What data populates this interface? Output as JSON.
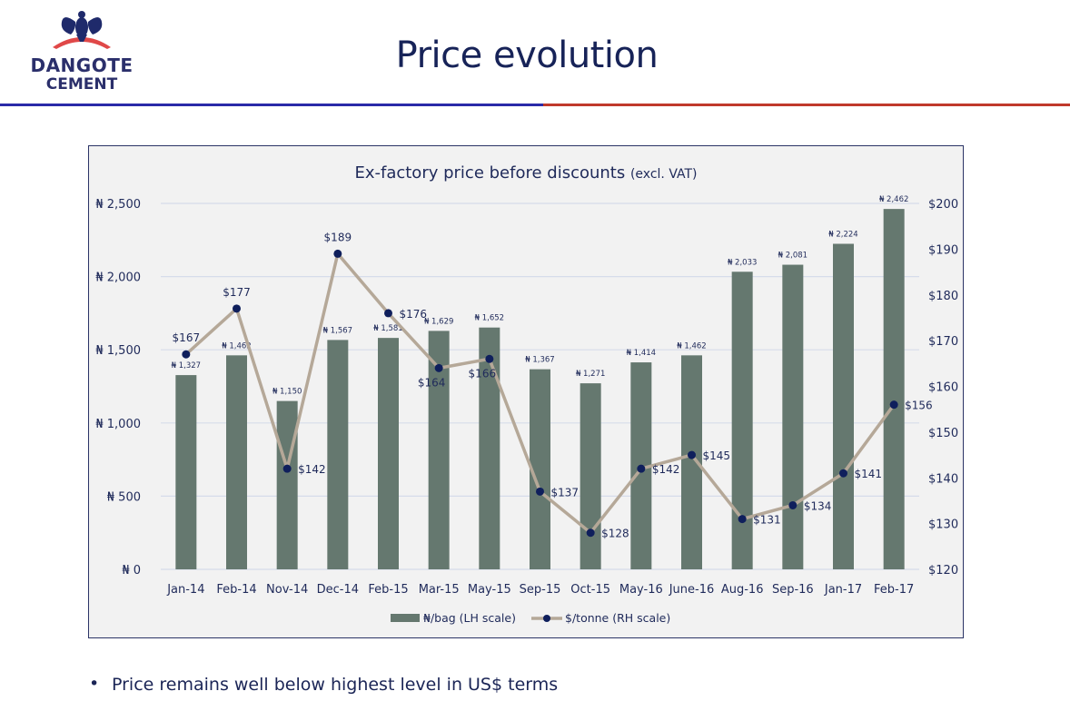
{
  "header": {
    "logo_line1": "DANGOTE",
    "logo_line2": "CEMENT",
    "title": "Price evolution",
    "brand_blue": "#2a2aa8",
    "brand_red": "#c0392b"
  },
  "chart_data": {
    "type": "bar+line",
    "title": "Ex-factory price before discounts",
    "title_suffix": "(excl. VAT)",
    "categories": [
      "Jan-14",
      "Feb-14",
      "Nov-14",
      "Dec-14",
      "Feb-15",
      "Mar-15",
      "May-15",
      "Sep-15",
      "Oct-15",
      "May-16",
      "June-16",
      "Aug-16",
      "Sep-16",
      "Jan-17",
      "Feb-17"
    ],
    "series": [
      {
        "name": "₦/bag (LH scale)",
        "type": "bar",
        "axis": "left",
        "color": "#65786f",
        "values": [
          1327,
          1462,
          1150,
          1567,
          1581,
          1629,
          1652,
          1367,
          1271,
          1414,
          1462,
          2033,
          2081,
          2224,
          2462
        ],
        "labels": [
          "₦ 1,327",
          "₦ 1,462",
          "₦ 1,150",
          "₦ 1,567",
          "₦ 1,581",
          "₦ 1,629",
          "₦ 1,652",
          "₦ 1,367",
          "₦ 1,271",
          "₦ 1,414",
          "₦ 1,462",
          "₦ 2,033",
          "₦ 2,081",
          "₦ 2,224",
          "₦ 2,462"
        ]
      },
      {
        "name": "$/tonne (RH scale)",
        "type": "line",
        "axis": "right",
        "line_color": "#b5a898",
        "marker_color": "#0f1f5c",
        "values": [
          167,
          177,
          142,
          189,
          176,
          164,
          166,
          137,
          128,
          142,
          145,
          131,
          134,
          141,
          156
        ],
        "labels": [
          "$167",
          "$177",
          "$142",
          "$189",
          "$176",
          "$164",
          "$166",
          "$137",
          "$128",
          "$142",
          "$145",
          "$131",
          "$134",
          "$141",
          "$156"
        ]
      }
    ],
    "left_axis": {
      "ylim": [
        0,
        2500
      ],
      "ticks": [
        0,
        500,
        1000,
        1500,
        2000,
        2500
      ],
      "tick_labels": [
        "₦ 0",
        "₦ 500",
        "₦ 1,000",
        "₦ 1,500",
        "₦ 2,000",
        "₦ 2,500"
      ]
    },
    "right_axis": {
      "ylim": [
        120,
        200
      ],
      "ticks": [
        120,
        130,
        140,
        150,
        160,
        170,
        180,
        190,
        200
      ],
      "tick_labels": [
        "$120",
        "$130",
        "$140",
        "$150",
        "$160",
        "$170",
        "$180",
        "$190",
        "$200"
      ]
    },
    "grid": true,
    "legend": "bottom-center",
    "text_color": "#1f2a5a",
    "grid_color": "#d6dcea",
    "background": "#f2f2f2"
  },
  "footer": {
    "bullet": "•",
    "text": "Price remains well below highest level in US$ terms"
  }
}
